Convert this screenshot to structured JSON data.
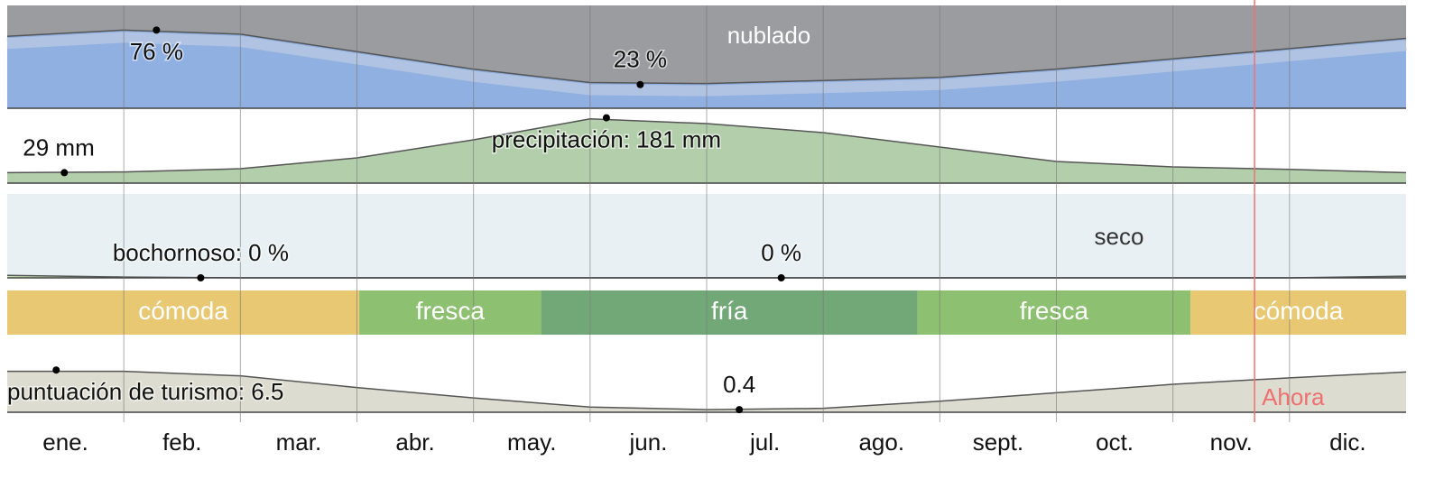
{
  "x_axis": {
    "categories": [
      "ene.",
      "feb.",
      "mar.",
      "abr.",
      "may.",
      "jun.",
      "jul.",
      "ago.",
      "sept.",
      "oct.",
      "nov.",
      "dic."
    ]
  },
  "now": {
    "label": "Ahora",
    "x": 10.7
  },
  "chart_data": [
    {
      "type": "area",
      "label": "nublado",
      "x": [
        0,
        1,
        2,
        3,
        4,
        5,
        6,
        7,
        8,
        9,
        10,
        11,
        12
      ],
      "values": [
        70,
        76,
        72,
        55,
        38,
        25,
        24,
        27,
        30,
        38,
        48,
        58,
        68
      ],
      "xlim": [
        0,
        12
      ],
      "ylim": [
        0,
        100
      ],
      "color": "#8fb0e0",
      "background": "#9a9ca0",
      "annotations": [
        {
          "x": 1.28,
          "value": 76,
          "label": "76 %"
        },
        {
          "x": 5.43,
          "value": 23,
          "label": "23 %"
        }
      ]
    },
    {
      "type": "area",
      "x": [
        0,
        1,
        2,
        3,
        4,
        5,
        6,
        7,
        8,
        9,
        10,
        11,
        12
      ],
      "values": [
        29,
        31,
        40,
        70,
        120,
        178,
        165,
        140,
        100,
        60,
        45,
        38,
        29
      ],
      "xlim": [
        0,
        12
      ],
      "ylim": [
        0,
        200
      ],
      "color": "#b3ceab",
      "background": "#ffffff",
      "annotations": [
        {
          "x": 0.49,
          "value": 29,
          "label": "29 mm"
        },
        {
          "x": 5.14,
          "value": 181,
          "label": "precipitación: 181 mm"
        }
      ]
    },
    {
      "type": "area",
      "label": "seco",
      "x": [
        0,
        1,
        2,
        3,
        4,
        5,
        6,
        7,
        8,
        9,
        10,
        11,
        12
      ],
      "values": [
        3,
        1,
        0,
        0,
        0,
        0,
        0,
        0,
        0,
        0,
        0,
        0,
        2
      ],
      "xlim": [
        0,
        12
      ],
      "ylim": [
        0,
        100
      ],
      "color": "#c5e8b0",
      "background": "#e8f0f3",
      "annotations": [
        {
          "x": 1.66,
          "value": 0,
          "label": "bochornoso: 0 %"
        },
        {
          "x": 6.64,
          "value": 0,
          "label": "0 %"
        }
      ]
    },
    {
      "type": "bands",
      "xlim": [
        0,
        12
      ],
      "segments": [
        {
          "label": "cómoda",
          "start": 0,
          "end": 3.02,
          "color": "#e8c872"
        },
        {
          "label": "fresca",
          "start": 3.02,
          "end": 4.58,
          "color": "#8dc070"
        },
        {
          "label": "fría",
          "start": 4.58,
          "end": 7.81,
          "color": "#72a878"
        },
        {
          "label": "fresca",
          "start": 7.81,
          "end": 10.15,
          "color": "#8dc070"
        },
        {
          "label": "cómoda",
          "start": 10.15,
          "end": 12,
          "color": "#e8c872"
        }
      ]
    },
    {
      "type": "area",
      "x": [
        0,
        1,
        2,
        3,
        4,
        5,
        6,
        7,
        8,
        9,
        10,
        11,
        12
      ],
      "values": [
        6.3,
        6.3,
        5.6,
        3.8,
        2.2,
        0.8,
        0.4,
        0.6,
        1.7,
        3.0,
        4.3,
        5.3,
        6.2
      ],
      "xlim": [
        0,
        12
      ],
      "ylim": [
        0,
        10
      ],
      "color": "#dcdcd0",
      "background": "#ffffff",
      "annotations": [
        {
          "x": 0.42,
          "value": 6.5,
          "label": "puntuación de turismo: 6.5"
        },
        {
          "x": 6.28,
          "value": 0.4,
          "label": "0.4"
        }
      ]
    }
  ]
}
